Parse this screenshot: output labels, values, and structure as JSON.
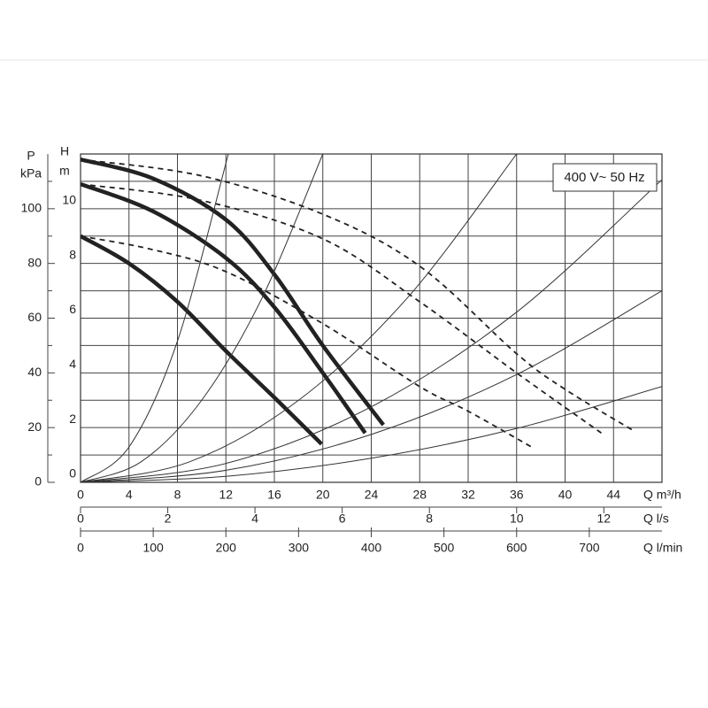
{
  "chart_data": {
    "type": "line",
    "box_label": "400 V~ 50 Hz",
    "y_label": "H",
    "y_unit": "m",
    "p_label": "P",
    "p_unit": "kPa",
    "x_label": "Q m³/h",
    "x2_label": "Q l/s",
    "x3_label": "Q l/min",
    "xlim": [
      0,
      48
    ],
    "xticks": [
      0,
      4,
      8,
      12,
      16,
      20,
      24,
      28,
      32,
      36,
      40,
      44
    ],
    "ylim": [
      0,
      12
    ],
    "yticks": [
      0,
      2,
      4,
      6,
      8,
      10
    ],
    "yminor": [
      1,
      3,
      5,
      7,
      9,
      11
    ],
    "plim": [
      0,
      120
    ],
    "pticks": [
      0,
      20,
      40,
      60,
      80,
      100
    ],
    "pminor": [
      10,
      30,
      50,
      70,
      90,
      110
    ],
    "x2lim": [
      0,
      13.333
    ],
    "x2ticks": [
      0,
      2,
      4,
      6,
      8,
      10,
      12
    ],
    "x3lim": [
      0,
      800
    ],
    "x3ticks": [
      0,
      100,
      200,
      300,
      400,
      500,
      600,
      700
    ],
    "grid": true,
    "series": [
      {
        "color": "#222",
        "style": "thick",
        "x": [
          0,
          6,
          12,
          16,
          20,
          25
        ],
        "values": [
          11.8,
          11.1,
          9.6,
          7.6,
          5.0,
          2.1
        ]
      },
      {
        "color": "#222",
        "style": "thick",
        "x": [
          0,
          6,
          12,
          16,
          20,
          23.5
        ],
        "values": [
          10.9,
          9.9,
          8.2,
          6.4,
          4.0,
          1.8
        ]
      },
      {
        "color": "#222",
        "style": "thick",
        "x": [
          0,
          4,
          8,
          12,
          16,
          19.9
        ],
        "values": [
          9.0,
          8.0,
          6.6,
          4.8,
          3.1,
          1.4
        ]
      },
      {
        "color": "#222",
        "style": "dashed",
        "x": [
          0,
          10,
          20,
          28,
          36,
          40,
          45.6
        ],
        "values": [
          11.8,
          11.2,
          9.8,
          7.9,
          4.7,
          3.4,
          1.9
        ]
      },
      {
        "color": "#222",
        "style": "dashed",
        "x": [
          0,
          10,
          20,
          28,
          36,
          43
        ],
        "values": [
          10.9,
          10.3,
          8.9,
          6.6,
          4.0,
          1.8
        ]
      },
      {
        "color": "#222",
        "style": "dashed",
        "x": [
          0,
          6,
          12,
          20,
          28,
          32,
          37.2
        ],
        "values": [
          9.0,
          8.5,
          7.7,
          5.8,
          3.5,
          2.6,
          1.3
        ]
      },
      {
        "color": "#333",
        "style": "thin",
        "x": [
          0,
          4,
          8,
          12.2
        ],
        "values": [
          0,
          1.29,
          5.16,
          12.0
        ]
      },
      {
        "color": "#333",
        "style": "thin",
        "x": [
          0,
          5,
          10,
          15,
          20
        ],
        "values": [
          0,
          0.75,
          3.0,
          6.75,
          12.0
        ]
      },
      {
        "color": "#333",
        "style": "thin",
        "x": [
          0,
          9,
          18,
          27,
          36
        ],
        "values": [
          0,
          0.75,
          3.0,
          6.75,
          12.0
        ]
      },
      {
        "color": "#333",
        "style": "thin",
        "x": [
          0,
          12,
          24,
          36,
          48
        ],
        "values": [
          0,
          0.69,
          2.76,
          6.22,
          11.06
        ]
      },
      {
        "color": "#333",
        "style": "thin",
        "x": [
          0,
          12,
          24,
          36,
          48
        ],
        "values": [
          0,
          0.44,
          1.75,
          3.94,
          7.0
        ]
      },
      {
        "color": "#333",
        "style": "thin",
        "x": [
          0,
          12,
          24,
          36,
          48
        ],
        "values": [
          0,
          0.22,
          0.88,
          1.97,
          3.5
        ]
      }
    ]
  }
}
